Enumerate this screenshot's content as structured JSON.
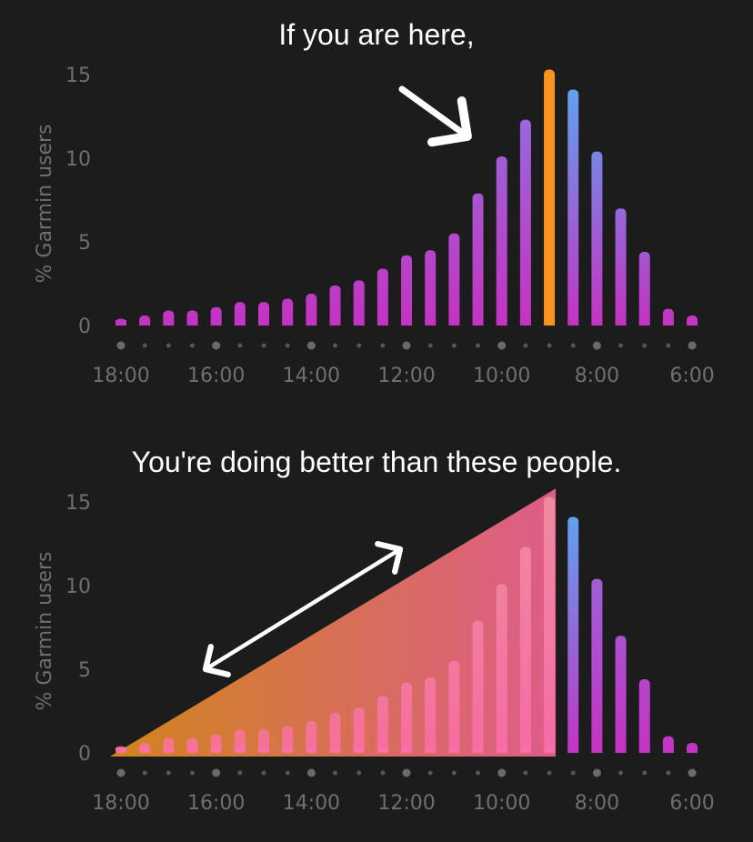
{
  "captions": {
    "top": "If you are here,",
    "bottom": "You're doing better than these people."
  },
  "colors": {
    "background": "#1c1c1c",
    "bar_bottom": "#c433c2",
    "bar_top": "#8f73e0",
    "highlight": "#f7931e",
    "after_top": "#5aa8f0",
    "fill_left": "#d98a1c",
    "fill_right": "#e8608f"
  },
  "chart_data": [
    {
      "type": "bar",
      "ylabel": "% Garmin users",
      "ylim": [
        0,
        15
      ],
      "yticks": [
        "0",
        "5",
        "10",
        "15"
      ],
      "xticks": [
        "18:00",
        "16:00",
        "14:00",
        "12:00",
        "10:00",
        "8:00",
        "6:00"
      ],
      "values": [
        0.4,
        0.6,
        0.9,
        0.9,
        1.1,
        1.4,
        1.4,
        1.6,
        1.9,
        2.4,
        2.7,
        3.4,
        4.2,
        4.5,
        5.5,
        7.9,
        10.1,
        12.3,
        15.3,
        14.1,
        10.4,
        7.0,
        4.4,
        1.0,
        0.6
      ],
      "highlight_index": 18,
      "annotation": "arrow pointing to highlighted bar"
    },
    {
      "type": "bar",
      "ylabel": "% Garmin users",
      "ylim": [
        0,
        15
      ],
      "yticks": [
        "0",
        "5",
        "10",
        "15"
      ],
      "xticks": [
        "18:00",
        "16:00",
        "14:00",
        "12:00",
        "10:00",
        "8:00",
        "6:00"
      ],
      "values": [
        0.4,
        0.6,
        0.9,
        0.9,
        1.1,
        1.4,
        1.4,
        1.6,
        1.9,
        2.4,
        2.7,
        3.4,
        4.2,
        4.5,
        5.5,
        7.9,
        10.1,
        12.3,
        15.3,
        14.1,
        10.4,
        7.0,
        4.4,
        1.0,
        0.6
      ],
      "shaded_through_index": 18,
      "annotation": "double-headed arrow over shaded region"
    }
  ]
}
